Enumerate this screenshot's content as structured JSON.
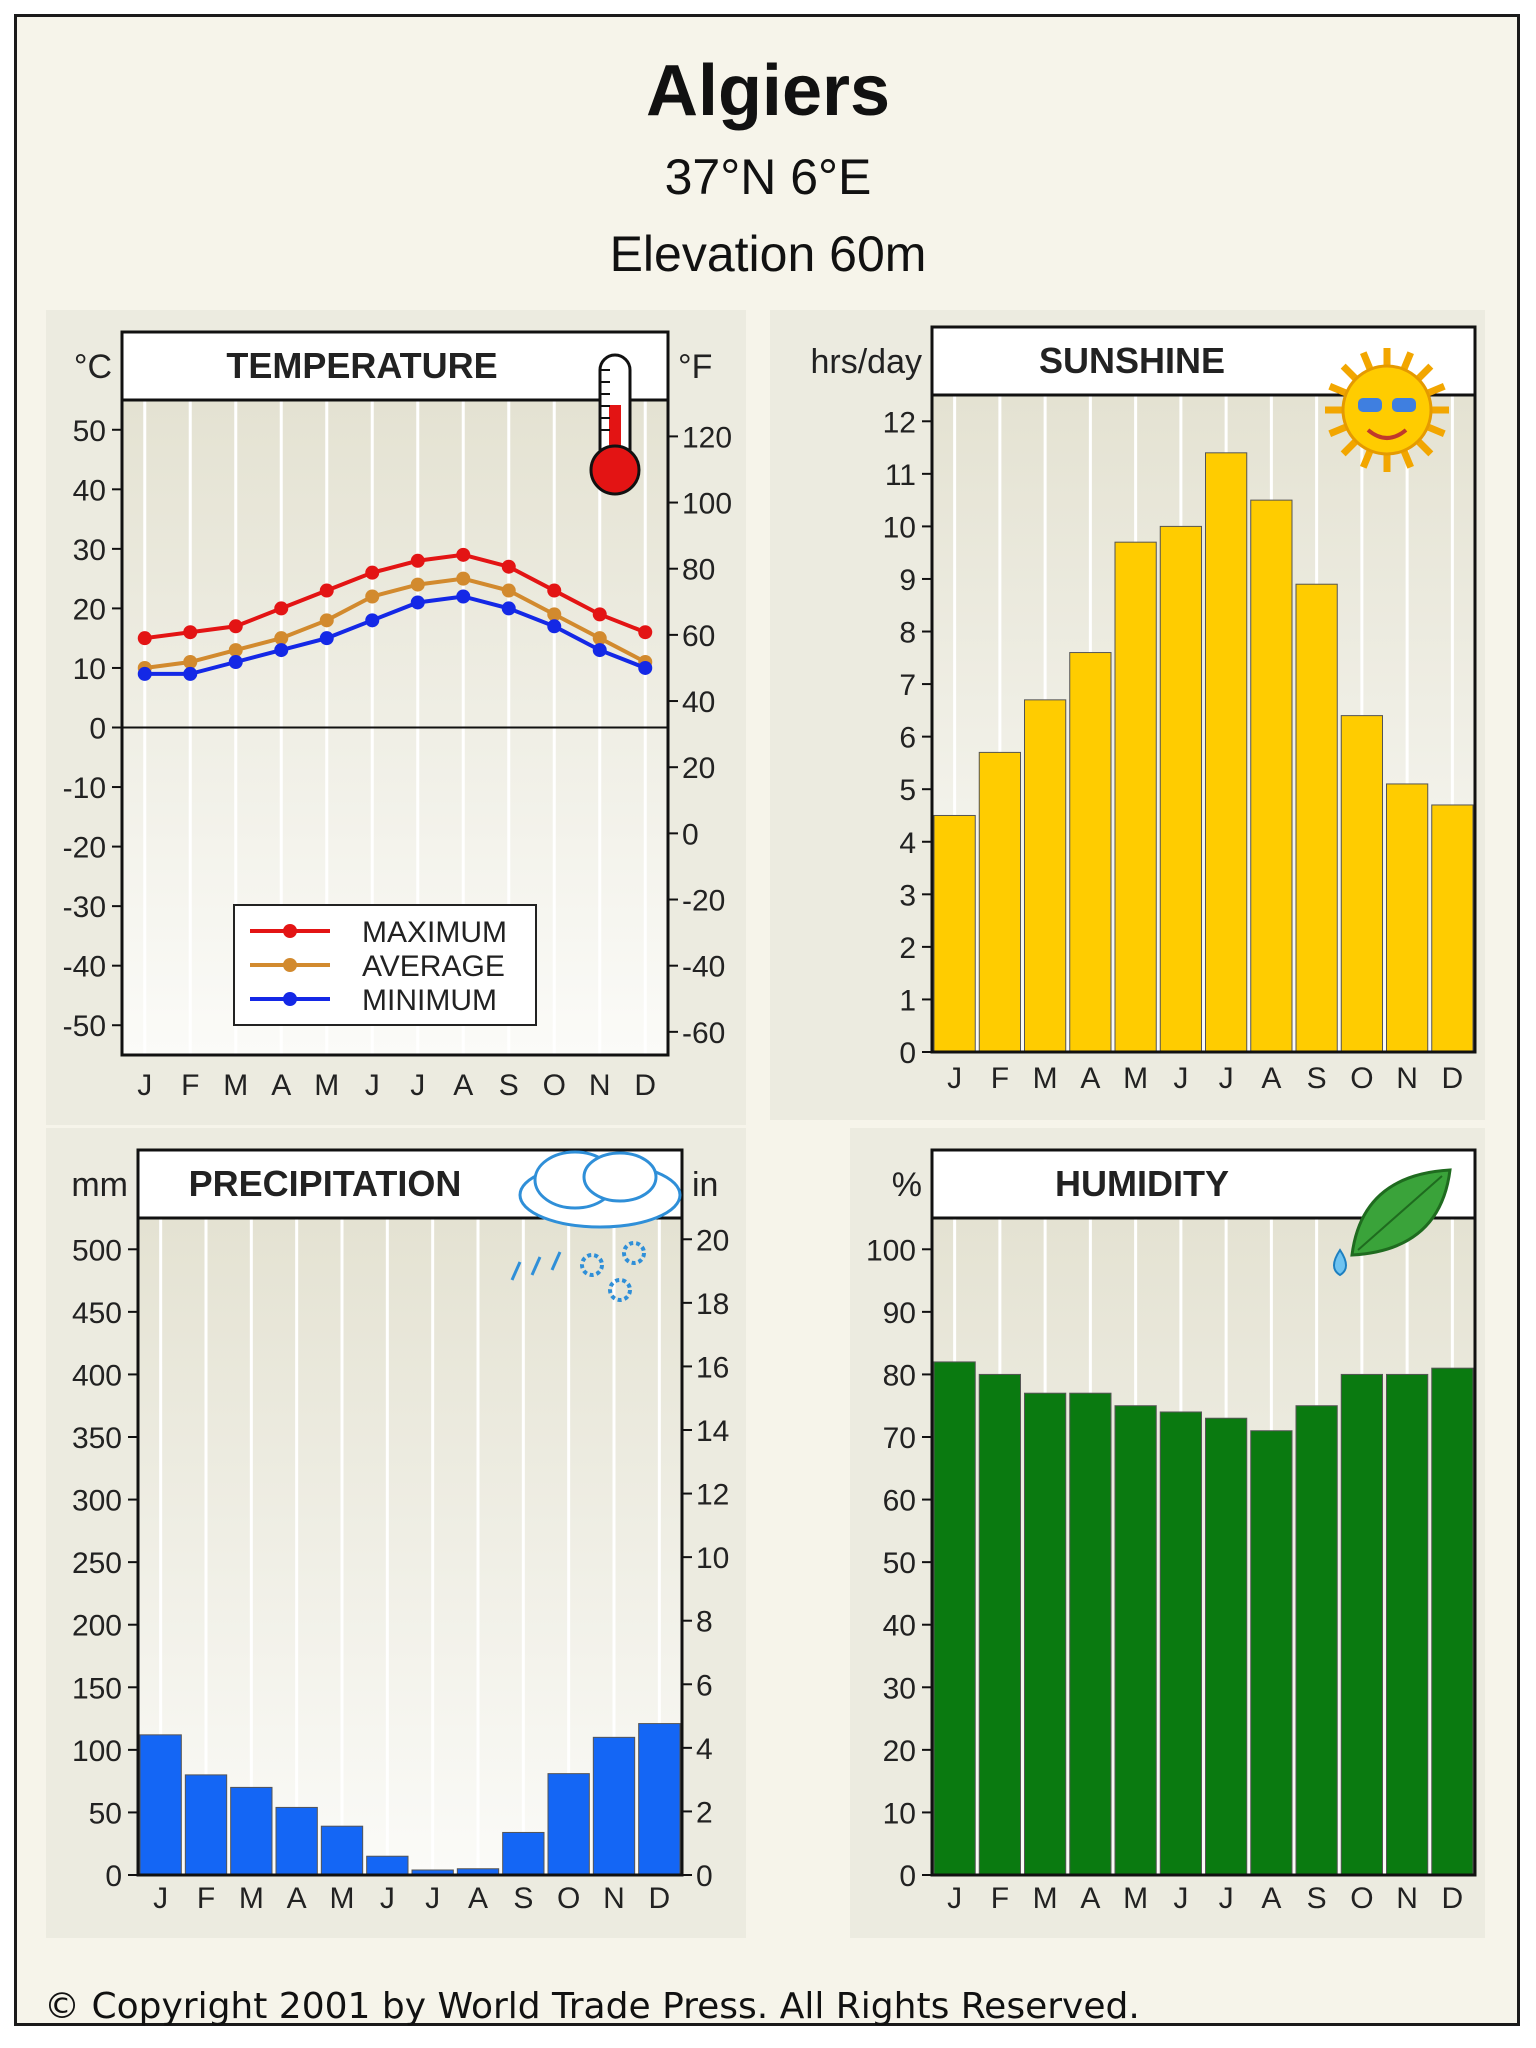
{
  "header": {
    "title": "Algiers",
    "coords": "37°N 6°E",
    "elevation": "Elevation 60m"
  },
  "copyright": "© Copyright 2001 by World Trade Press. All Rights Reserved.",
  "colors": {
    "maximum": "#e31414",
    "average": "#d28a2e",
    "minimum": "#1428e6",
    "sunshine": "#ffcc00",
    "precipitation": "#1466f5",
    "humidity": "#0a7a10"
  },
  "chart_data": [
    {
      "type": "line",
      "title": "TEMPERATURE",
      "icon": "thermometer-icon",
      "left_unit": "°C",
      "right_unit": "°F",
      "categories": [
        "J",
        "F",
        "M",
        "A",
        "M",
        "J",
        "J",
        "A",
        "S",
        "O",
        "N",
        "D"
      ],
      "left_ticks": [
        50,
        40,
        30,
        20,
        10,
        0,
        -10,
        -20,
        -30,
        -40,
        -50
      ],
      "right_ticks": [
        120,
        100,
        80,
        60,
        40,
        20,
        0,
        -20,
        -40,
        -60
      ],
      "ylim": [
        -55,
        55
      ],
      "legend": [
        "MAXIMUM",
        "AVERAGE",
        "MINIMUM"
      ],
      "series": [
        {
          "name": "MAXIMUM",
          "values": [
            15,
            16,
            17,
            20,
            23,
            26,
            28,
            29,
            27,
            23,
            19,
            16
          ]
        },
        {
          "name": "AVERAGE",
          "values": [
            10,
            11,
            13,
            15,
            18,
            22,
            24,
            25,
            23,
            19,
            15,
            11
          ]
        },
        {
          "name": "MINIMUM",
          "values": [
            9,
            9,
            11,
            13,
            15,
            18,
            21,
            22,
            20,
            17,
            13,
            10
          ]
        }
      ]
    },
    {
      "type": "bar",
      "title": "SUNSHINE",
      "icon": "sun-icon",
      "left_unit": "hrs/day",
      "categories": [
        "J",
        "F",
        "M",
        "A",
        "M",
        "J",
        "J",
        "A",
        "S",
        "O",
        "N",
        "D"
      ],
      "left_ticks": [
        12,
        11,
        10,
        9,
        8,
        7,
        6,
        5,
        4,
        3,
        2,
        1,
        0
      ],
      "ylim": [
        0,
        12.5
      ],
      "values": [
        4.5,
        5.7,
        6.7,
        7.6,
        9.7,
        10,
        11.4,
        10.5,
        8.9,
        6.4,
        5.1,
        4.7
      ]
    },
    {
      "type": "bar",
      "title": "PRECIPITATION",
      "icon": "rain-cloud-icon",
      "left_unit": "mm",
      "right_unit": "in",
      "categories": [
        "J",
        "F",
        "M",
        "A",
        "M",
        "J",
        "J",
        "A",
        "S",
        "O",
        "N",
        "D"
      ],
      "left_ticks": [
        500,
        450,
        400,
        350,
        300,
        250,
        200,
        150,
        100,
        50,
        0
      ],
      "right_ticks": [
        20,
        18,
        16,
        14,
        12,
        10,
        8,
        6,
        4,
        2,
        0
      ],
      "ylim": [
        0,
        525
      ],
      "values": [
        112,
        80,
        70,
        54,
        39,
        15,
        4,
        5,
        34,
        81,
        110,
        121
      ]
    },
    {
      "type": "bar",
      "title": "HUMIDITY",
      "icon": "leaf-icon",
      "left_unit": "%",
      "categories": [
        "J",
        "F",
        "M",
        "A",
        "M",
        "J",
        "J",
        "A",
        "S",
        "O",
        "N",
        "D"
      ],
      "left_ticks": [
        100,
        90,
        80,
        70,
        60,
        50,
        40,
        30,
        20,
        10,
        0
      ],
      "ylim": [
        0,
        105
      ],
      "values": [
        82,
        80,
        77,
        77,
        75,
        74,
        73,
        71,
        75,
        80,
        80,
        81
      ]
    }
  ]
}
